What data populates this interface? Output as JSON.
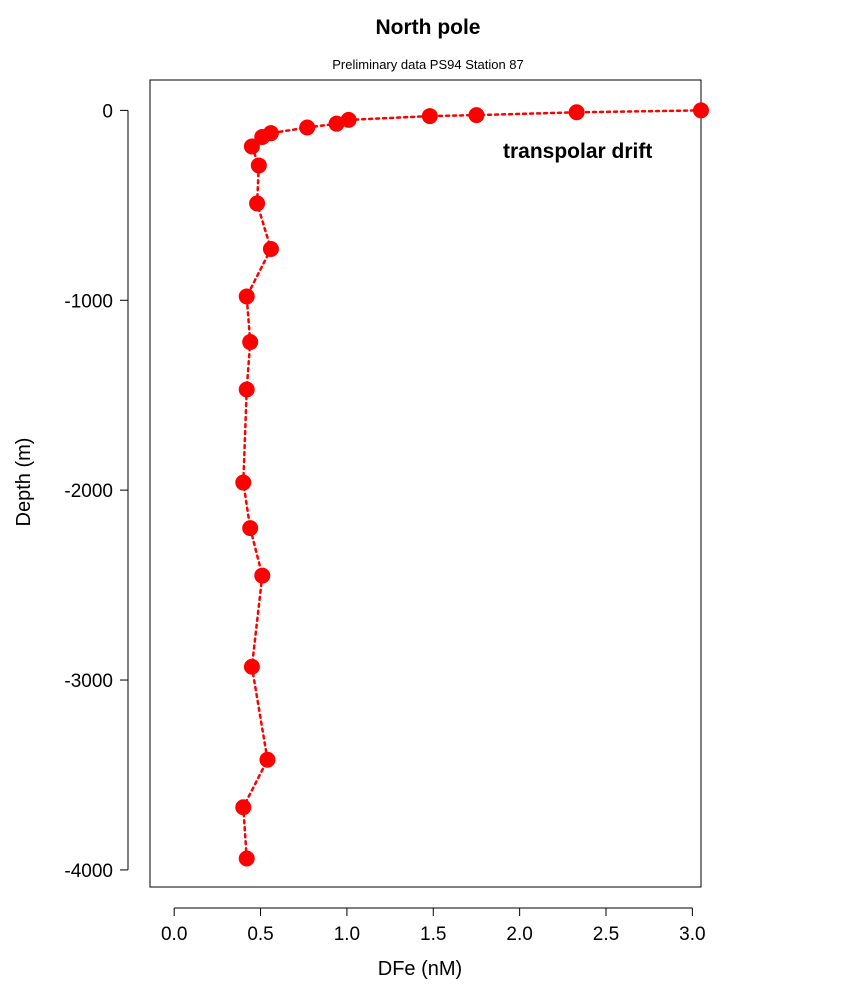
{
  "chart_data": {
    "type": "scatter",
    "title": "North pole",
    "subtitle": "Preliminary data PS94 Station 87",
    "xlabel": "DFe (nM)",
    "ylabel": "Depth (m)",
    "xlim": [
      -0.14,
      3.05
    ],
    "ylim": [
      -4090,
      160
    ],
    "xticks": [
      0.0,
      0.5,
      1.0,
      1.5,
      2.0,
      2.5,
      3.0
    ],
    "xtick_labels": [
      "0.0",
      "0.5",
      "1.0",
      "1.5",
      "2.0",
      "2.5",
      "3.0"
    ],
    "yticks": [
      0,
      -1000,
      -2000,
      -3000,
      -4000
    ],
    "ytick_labels": [
      "0",
      "-1000",
      "-2000",
      "-3000",
      "-4000"
    ],
    "annotation": "transpolar drift",
    "series_color": "#ff0000",
    "grid": false,
    "points": [
      {
        "x": 3.05,
        "y": 0
      },
      {
        "x": 2.33,
        "y": -10
      },
      {
        "x": 1.75,
        "y": -25
      },
      {
        "x": 1.48,
        "y": -30
      },
      {
        "x": 1.01,
        "y": -50
      },
      {
        "x": 0.94,
        "y": -70
      },
      {
        "x": 0.77,
        "y": -90
      },
      {
        "x": 0.56,
        "y": -120
      },
      {
        "x": 0.51,
        "y": -140
      },
      {
        "x": 0.45,
        "y": -190
      },
      {
        "x": 0.49,
        "y": -290
      },
      {
        "x": 0.48,
        "y": -490
      },
      {
        "x": 0.56,
        "y": -730
      },
      {
        "x": 0.42,
        "y": -980
      },
      {
        "x": 0.44,
        "y": -1220
      },
      {
        "x": 0.42,
        "y": -1470
      },
      {
        "x": 0.4,
        "y": -1960
      },
      {
        "x": 0.44,
        "y": -2200
      },
      {
        "x": 0.51,
        "y": -2450
      },
      {
        "x": 0.45,
        "y": -2930
      },
      {
        "x": 0.54,
        "y": -3420
      },
      {
        "x": 0.4,
        "y": -3670
      },
      {
        "x": 0.42,
        "y": -3940
      }
    ]
  }
}
